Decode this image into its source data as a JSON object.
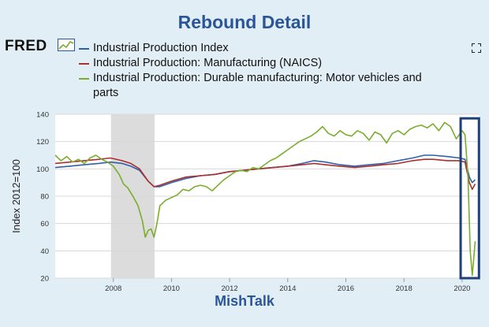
{
  "page": {
    "title": "Rebound Detail",
    "footer": "MishTalk",
    "logo_text": "FRED"
  },
  "icons": {
    "logo_mark": "fred-chart-icon",
    "fullscreen": "fullscreen-icon"
  },
  "colors": {
    "background": "#e2eef6",
    "plot_background": "#ffffff",
    "recession": "#dcdcdc",
    "highlight_box": "#1f3f7a",
    "title": "#2a5599"
  },
  "chart_data": {
    "type": "line",
    "ylabel": "Index 2012=100",
    "ylim": [
      20,
      140
    ],
    "yticks": [
      "20",
      "40",
      "60",
      "80",
      "100",
      "120",
      "140"
    ],
    "xlim": [
      2006.0,
      2020.6
    ],
    "xticks": [
      "2008",
      "2010",
      "2012",
      "2014",
      "2016",
      "2018",
      "2020"
    ],
    "grid": "horizontal",
    "legend_position": "top",
    "recession": [
      2007.92,
      2009.42
    ],
    "highlight": {
      "x": [
        2019.95,
        2020.58
      ],
      "y": [
        20,
        137
      ]
    },
    "series": [
      {
        "name": "Industrial Production Index",
        "color": "#2f5fa8",
        "points": [
          [
            2006.0,
            101
          ],
          [
            2006.5,
            102
          ],
          [
            2007.0,
            103
          ],
          [
            2007.5,
            104
          ],
          [
            2007.9,
            105
          ],
          [
            2008.3,
            104
          ],
          [
            2008.6,
            102
          ],
          [
            2008.9,
            99
          ],
          [
            2009.2,
            91
          ],
          [
            2009.4,
            87
          ],
          [
            2009.6,
            87
          ],
          [
            2010.0,
            90
          ],
          [
            2010.5,
            93
          ],
          [
            2011.0,
            95
          ],
          [
            2011.5,
            96
          ],
          [
            2012.0,
            98
          ],
          [
            2012.5,
            99
          ],
          [
            2013.0,
            100
          ],
          [
            2013.5,
            101
          ],
          [
            2014.0,
            102
          ],
          [
            2014.5,
            104
          ],
          [
            2014.9,
            106
          ],
          [
            2015.3,
            105
          ],
          [
            2015.8,
            103
          ],
          [
            2016.3,
            102
          ],
          [
            2016.8,
            103
          ],
          [
            2017.3,
            104
          ],
          [
            2017.8,
            106
          ],
          [
            2018.3,
            108
          ],
          [
            2018.7,
            110
          ],
          [
            2019.0,
            110
          ],
          [
            2019.5,
            109
          ],
          [
            2019.9,
            108
          ],
          [
            2020.1,
            107
          ],
          [
            2020.25,
            94
          ],
          [
            2020.35,
            90
          ],
          [
            2020.45,
            92
          ]
        ]
      },
      {
        "name": "Industrial Production: Manufacturing (NAICS)",
        "color": "#a8302e",
        "points": [
          [
            2006.0,
            104
          ],
          [
            2006.5,
            105
          ],
          [
            2007.0,
            106
          ],
          [
            2007.5,
            107
          ],
          [
            2007.9,
            108
          ],
          [
            2008.3,
            106
          ],
          [
            2008.6,
            104
          ],
          [
            2008.9,
            100
          ],
          [
            2009.2,
            91
          ],
          [
            2009.4,
            87
          ],
          [
            2009.6,
            88
          ],
          [
            2010.0,
            91
          ],
          [
            2010.5,
            94
          ],
          [
            2011.0,
            95
          ],
          [
            2011.5,
            96
          ],
          [
            2012.0,
            98
          ],
          [
            2012.5,
            99
          ],
          [
            2013.0,
            100
          ],
          [
            2013.5,
            101
          ],
          [
            2014.0,
            102
          ],
          [
            2014.5,
            103
          ],
          [
            2014.9,
            104
          ],
          [
            2015.3,
            103
          ],
          [
            2015.8,
            102
          ],
          [
            2016.3,
            101
          ],
          [
            2016.8,
            102
          ],
          [
            2017.3,
            103
          ],
          [
            2017.8,
            104
          ],
          [
            2018.3,
            106
          ],
          [
            2018.7,
            107
          ],
          [
            2019.0,
            107
          ],
          [
            2019.5,
            106
          ],
          [
            2019.9,
            106
          ],
          [
            2020.1,
            105
          ],
          [
            2020.25,
            90
          ],
          [
            2020.35,
            85
          ],
          [
            2020.45,
            89
          ]
        ]
      },
      {
        "name": "Industrial Production: Durable manufacturing: Motor vehicles and parts",
        "color": "#7aad2c",
        "points": [
          [
            2006.0,
            110
          ],
          [
            2006.2,
            106
          ],
          [
            2006.4,
            109
          ],
          [
            2006.6,
            105
          ],
          [
            2006.8,
            107
          ],
          [
            2007.0,
            104
          ],
          [
            2007.2,
            108
          ],
          [
            2007.4,
            110
          ],
          [
            2007.6,
            107
          ],
          [
            2007.8,
            105
          ],
          [
            2008.0,
            102
          ],
          [
            2008.2,
            96
          ],
          [
            2008.35,
            89
          ],
          [
            2008.5,
            86
          ],
          [
            2008.7,
            79
          ],
          [
            2008.85,
            73
          ],
          [
            2009.0,
            62
          ],
          [
            2009.1,
            50
          ],
          [
            2009.2,
            55
          ],
          [
            2009.3,
            56
          ],
          [
            2009.4,
            50
          ],
          [
            2009.5,
            60
          ],
          [
            2009.6,
            73
          ],
          [
            2009.8,
            77
          ],
          [
            2010.0,
            79
          ],
          [
            2010.2,
            81
          ],
          [
            2010.4,
            85
          ],
          [
            2010.6,
            84
          ],
          [
            2010.8,
            87
          ],
          [
            2011.0,
            88
          ],
          [
            2011.2,
            87
          ],
          [
            2011.4,
            84
          ],
          [
            2011.6,
            88
          ],
          [
            2011.8,
            92
          ],
          [
            2012.0,
            95
          ],
          [
            2012.2,
            98
          ],
          [
            2012.4,
            99
          ],
          [
            2012.6,
            98
          ],
          [
            2012.8,
            101
          ],
          [
            2013.0,
            100
          ],
          [
            2013.2,
            103
          ],
          [
            2013.4,
            106
          ],
          [
            2013.6,
            108
          ],
          [
            2013.8,
            111
          ],
          [
            2014.0,
            114
          ],
          [
            2014.2,
            117
          ],
          [
            2014.4,
            120
          ],
          [
            2014.6,
            122
          ],
          [
            2014.8,
            124
          ],
          [
            2015.0,
            127
          ],
          [
            2015.2,
            131
          ],
          [
            2015.4,
            126
          ],
          [
            2015.6,
            124
          ],
          [
            2015.8,
            128
          ],
          [
            2016.0,
            125
          ],
          [
            2016.2,
            124
          ],
          [
            2016.4,
            128
          ],
          [
            2016.6,
            126
          ],
          [
            2016.8,
            121
          ],
          [
            2017.0,
            127
          ],
          [
            2017.2,
            125
          ],
          [
            2017.4,
            119
          ],
          [
            2017.6,
            126
          ],
          [
            2017.8,
            128
          ],
          [
            2018.0,
            125
          ],
          [
            2018.2,
            129
          ],
          [
            2018.4,
            131
          ],
          [
            2018.6,
            132
          ],
          [
            2018.8,
            130
          ],
          [
            2019.0,
            133
          ],
          [
            2019.2,
            128
          ],
          [
            2019.4,
            134
          ],
          [
            2019.6,
            131
          ],
          [
            2019.8,
            122
          ],
          [
            2020.0,
            128
          ],
          [
            2020.1,
            125
          ],
          [
            2020.2,
            95
          ],
          [
            2020.28,
            40
          ],
          [
            2020.35,
            22
          ],
          [
            2020.45,
            47
          ]
        ]
      }
    ]
  }
}
